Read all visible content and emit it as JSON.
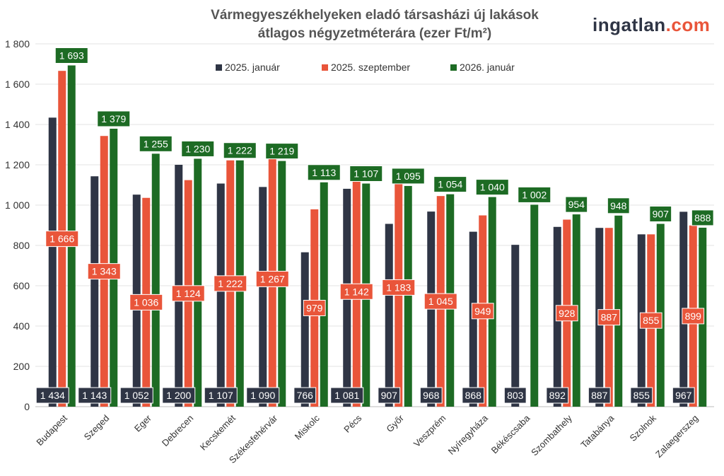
{
  "chart_data": {
    "type": "bar",
    "title_line1": "Vármegyeszékhelyeken eladó társasházi új lakások",
    "title_line2": "átlagos négyzetméterára (ezer Ft/m²)",
    "xlabel": "",
    "ylabel": "",
    "ylim": [
      0,
      1800
    ],
    "yticks": [
      0,
      200,
      400,
      600,
      800,
      1000,
      1200,
      1400,
      1600,
      1800
    ],
    "ytick_labels": [
      "0",
      "200",
      "400",
      "600",
      "800",
      "1 000",
      "1 200",
      "1 400",
      "1 600",
      "1 800"
    ],
    "grid": true,
    "legend_position": "top",
    "categories": [
      "Budapest",
      "Szeged",
      "Eger",
      "Debrecen",
      "Kecskemét",
      "Székesfehérvár",
      "Miskolc",
      "Pécs",
      "Győr",
      "Veszprém",
      "Nyíregyháza",
      "Békéscsaba",
      "Szombathely",
      "Tatabánya",
      "Szolnok",
      "Zalaegerszeg"
    ],
    "series": [
      {
        "name": "2025. január",
        "color": "#2f3545",
        "values": [
          1434,
          1143,
          1052,
          1200,
          1107,
          1090,
          766,
          1081,
          907,
          968,
          868,
          803,
          892,
          887,
          855,
          967
        ]
      },
      {
        "name": "2025. szeptember",
        "color": "#e9553a",
        "values": [
          1666,
          1343,
          1036,
          1124,
          1222,
          1267,
          979,
          1142,
          1183,
          1045,
          949,
          null,
          928,
          887,
          855,
          899
        ]
      },
      {
        "name": "2026. január",
        "color": "#1d6b24",
        "values": [
          1693,
          1379,
          1255,
          1230,
          1222,
          1219,
          1113,
          1107,
          1095,
          1054,
          1040,
          1002,
          954,
          948,
          907,
          888
        ]
      }
    ]
  },
  "logo": {
    "main": "ingatlan",
    "suffix": ".com"
  }
}
